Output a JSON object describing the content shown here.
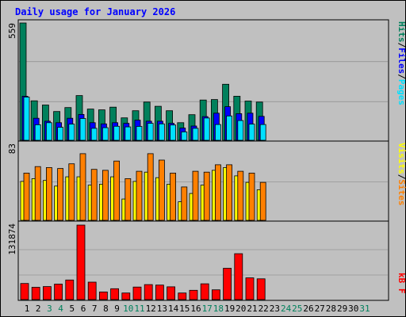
{
  "title": "Daily usage for January 2026",
  "colors": {
    "hits": "#00805c",
    "files": "#0000ff",
    "pages": "#00e0ff",
    "visits": "#ffff00",
    "sites": "#ff8000",
    "kbytes": "#ff0000",
    "title": "#0000ff",
    "weekday_label": "#000000",
    "weekend_label": "#00805c"
  },
  "chart_data": [
    {
      "type": "bar",
      "title": "Daily usage for January 2026",
      "x": [
        1,
        2,
        3,
        4,
        5,
        6,
        7,
        8,
        9,
        10,
        11,
        12,
        13,
        14,
        15,
        16,
        17,
        18,
        19,
        20,
        21,
        22,
        23,
        24,
        25,
        26,
        27,
        28,
        29,
        30,
        31
      ],
      "x_labels": [
        "1",
        "2",
        "3",
        "4",
        "5",
        "6",
        "7",
        "8",
        "9",
        "10",
        "11",
        "12",
        "13",
        "14",
        "15",
        "16",
        "17",
        "18",
        "19",
        "20",
        "21",
        "22",
        "23",
        "24",
        "25",
        "26",
        "27",
        "28",
        "29",
        "30",
        "31"
      ],
      "weekend_days": [
        3,
        4,
        10,
        11,
        17,
        18,
        24,
        25,
        31
      ],
      "ylim": [
        0,
        559
      ],
      "ymax_label": "559",
      "series": [
        {
          "name": "Hits",
          "values": [
            559,
            188,
            168,
            137,
            156,
            213,
            149,
            145,
            158,
            107,
            141,
            182,
            162,
            141,
            84,
            122,
            192,
            194,
            267,
            210,
            187,
            182,
            0,
            0,
            0,
            0,
            0,
            0,
            0,
            0,
            0
          ]
        },
        {
          "name": "Files",
          "values": [
            210,
            105,
            91,
            84,
            105,
            123,
            84,
            78,
            84,
            81,
            96,
            91,
            91,
            81,
            58,
            68,
            113,
            129,
            160,
            127,
            129,
            114,
            0,
            0,
            0,
            0,
            0,
            0,
            0,
            0,
            0
          ]
        },
        {
          "name": "Pages",
          "values": [
            206,
            74,
            84,
            62,
            77,
            104,
            57,
            60,
            67,
            64,
            66,
            81,
            78,
            73,
            40,
            57,
            106,
            75,
            116,
            94,
            77,
            75,
            0,
            0,
            0,
            0,
            0,
            0,
            0,
            0,
            0
          ]
        }
      ]
    },
    {
      "type": "bar",
      "ylim": [
        0,
        83
      ],
      "ymax_label": "83",
      "series": [
        {
          "name": "Visits",
          "values": [
            42,
            45,
            43,
            37,
            47,
            47,
            38,
            39,
            47,
            23,
            42,
            52,
            46,
            39,
            20,
            29,
            38,
            54,
            57,
            48,
            41,
            33,
            0,
            0,
            0,
            0,
            0,
            0,
            0,
            0,
            0
          ]
        },
        {
          "name": "Sites",
          "values": [
            51,
            58,
            57,
            56,
            61,
            72,
            55,
            54,
            64,
            45,
            53,
            72,
            65,
            51,
            36,
            53,
            52,
            60,
            60,
            53,
            51,
            41,
            0,
            0,
            0,
            0,
            0,
            0,
            0,
            0,
            0
          ]
        }
      ]
    },
    {
      "type": "bar",
      "ylim": [
        0,
        131874
      ],
      "ymax_label": "131874",
      "series": [
        {
          "name": "KBytes",
          "values": [
            28500,
            21700,
            23000,
            27300,
            34600,
            131874,
            30900,
            13400,
            19200,
            11600,
            22100,
            26500,
            25700,
            22600,
            11600,
            16400,
            27900,
            17300,
            55400,
            81200,
            38400,
            36800,
            0,
            0,
            0,
            0,
            0,
            0,
            0,
            0,
            0
          ]
        }
      ]
    }
  ],
  "legend": {
    "pages": "Pages",
    "files": "Files",
    "hits": "Hits",
    "sep": "/",
    "sites": "Sites",
    "visits": "Visits",
    "kbytes": "kB F"
  }
}
